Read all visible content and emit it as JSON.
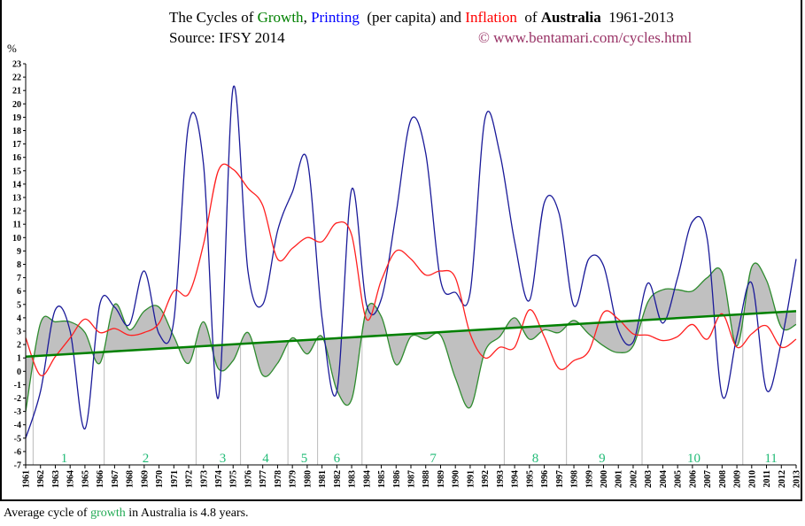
{
  "title": {
    "prefix": "The Cycles of ",
    "growth": "Growth",
    "sep": ", ",
    "printing": "Printing",
    "mid": "  (per capita) and ",
    "inflation": "Inflation",
    "of": "  of ",
    "country": "Australia",
    "years": "  1961-2013"
  },
  "source": "Source: IFSY 2014",
  "copyright": "© www.bentamari.com/cycles.html",
  "footer": {
    "pre": "Average cycle of ",
    "growth": "growth",
    "post": " in Australia is 4.8 years."
  },
  "chart_data": {
    "type": "line",
    "ylabel": "%",
    "ylim": [
      -7,
      23
    ],
    "yticks": [
      -7,
      -6,
      -5,
      -4,
      -3,
      -2,
      -1,
      0,
      1,
      2,
      3,
      4,
      5,
      6,
      7,
      8,
      9,
      10,
      11,
      12,
      13,
      14,
      15,
      16,
      17,
      18,
      19,
      20,
      21,
      22,
      23
    ],
    "x": [
      1961,
      1962,
      1963,
      1964,
      1965,
      1966,
      1967,
      1968,
      1969,
      1970,
      1971,
      1972,
      1973,
      1974,
      1975,
      1976,
      1977,
      1978,
      1979,
      1980,
      1981,
      1982,
      1983,
      1984,
      1985,
      1986,
      1987,
      1988,
      1989,
      1990,
      1991,
      1992,
      1993,
      1994,
      1995,
      1996,
      1997,
      1998,
      1999,
      2000,
      2001,
      2002,
      2003,
      2004,
      2005,
      2006,
      2007,
      2008,
      2009,
      2010,
      2011,
      2012,
      2013
    ],
    "series": [
      {
        "name": "Growth",
        "color": "#2e8b2e",
        "values": [
          -3.0,
          3.6,
          3.7,
          3.7,
          2.9,
          0.6,
          5.0,
          3.1,
          4.5,
          4.8,
          2.6,
          0.6,
          3.7,
          0.2,
          0.8,
          2.9,
          -0.3,
          0.6,
          2.5,
          1.3,
          2.6,
          -1.4,
          -2.1,
          4.6,
          4.1,
          0.5,
          2.6,
          2.4,
          2.7,
          -0.5,
          -2.7,
          1.5,
          2.6,
          4.0,
          2.4,
          3.1,
          2.9,
          3.8,
          2.8,
          1.9,
          1.4,
          1.9,
          5.2,
          6.1,
          6.1,
          6.0,
          7.0,
          7.4,
          1.9,
          7.8,
          6.8,
          3.3,
          3.5
        ]
      },
      {
        "name": "Printing",
        "color": "#1a1a99",
        "values": [
          -5.0,
          -1.5,
          4.6,
          3.0,
          -4.3,
          5.0,
          4.8,
          3.5,
          7.5,
          2.8,
          3.8,
          18.5,
          15.5,
          -2.0,
          21.2,
          7.5,
          5.0,
          10.5,
          13.4,
          15.8,
          4.0,
          -1.5,
          13.6,
          5.0,
          5.4,
          11.8,
          18.8,
          16.3,
          6.8,
          5.9,
          5.9,
          18.9,
          16.3,
          9.7,
          5.3,
          12.6,
          11.8,
          4.9,
          8.4,
          7.9,
          3.1,
          2.2,
          6.6,
          3.6,
          7.0,
          11.2,
          9.9,
          -1.8,
          2.6,
          6.6,
          -1.4,
          2.2,
          8.4
        ]
      },
      {
        "name": "Inflation",
        "color": "#ff2020",
        "values": [
          2.5,
          -0.3,
          1.1,
          2.5,
          3.9,
          2.9,
          3.2,
          2.7,
          2.9,
          3.6,
          6.0,
          5.8,
          9.5,
          15.0,
          15.1,
          13.7,
          12.4,
          8.4,
          9.2,
          10.0,
          9.7,
          11.1,
          10.2,
          3.9,
          6.8,
          9.0,
          8.4,
          7.2,
          7.5,
          7.0,
          2.8,
          1.0,
          1.8,
          1.8,
          4.6,
          2.6,
          0.2,
          0.8,
          1.5,
          4.4,
          3.9,
          2.8,
          2.7,
          2.3,
          2.6,
          3.5,
          2.4,
          4.3,
          1.8,
          2.8,
          3.4,
          1.8,
          2.4
        ]
      }
    ],
    "trend": {
      "color": "#008000",
      "from": [
        1961,
        1.1
      ],
      "to": [
        2013,
        4.5
      ]
    },
    "fill_color": "#c0c0c0",
    "cycles": {
      "boundaries": [
        1961.5,
        1966.3,
        1972.5,
        1975.5,
        1978.7,
        1980.7,
        1983.7,
        1993.3,
        1997.5,
        2002.6,
        2009.4
      ],
      "labels": [
        "1",
        "2",
        "3",
        "4",
        "5",
        "6",
        "7",
        "8",
        "9",
        "10",
        "11"
      ],
      "label_positions": [
        1963.6,
        1969.1,
        1974.3,
        1977.2,
        1979.8,
        1982.0,
        1988.5,
        1995.4,
        1999.9,
        2006.1,
        2011.3
      ],
      "color": "#22bb77"
    },
    "grid": false
  }
}
